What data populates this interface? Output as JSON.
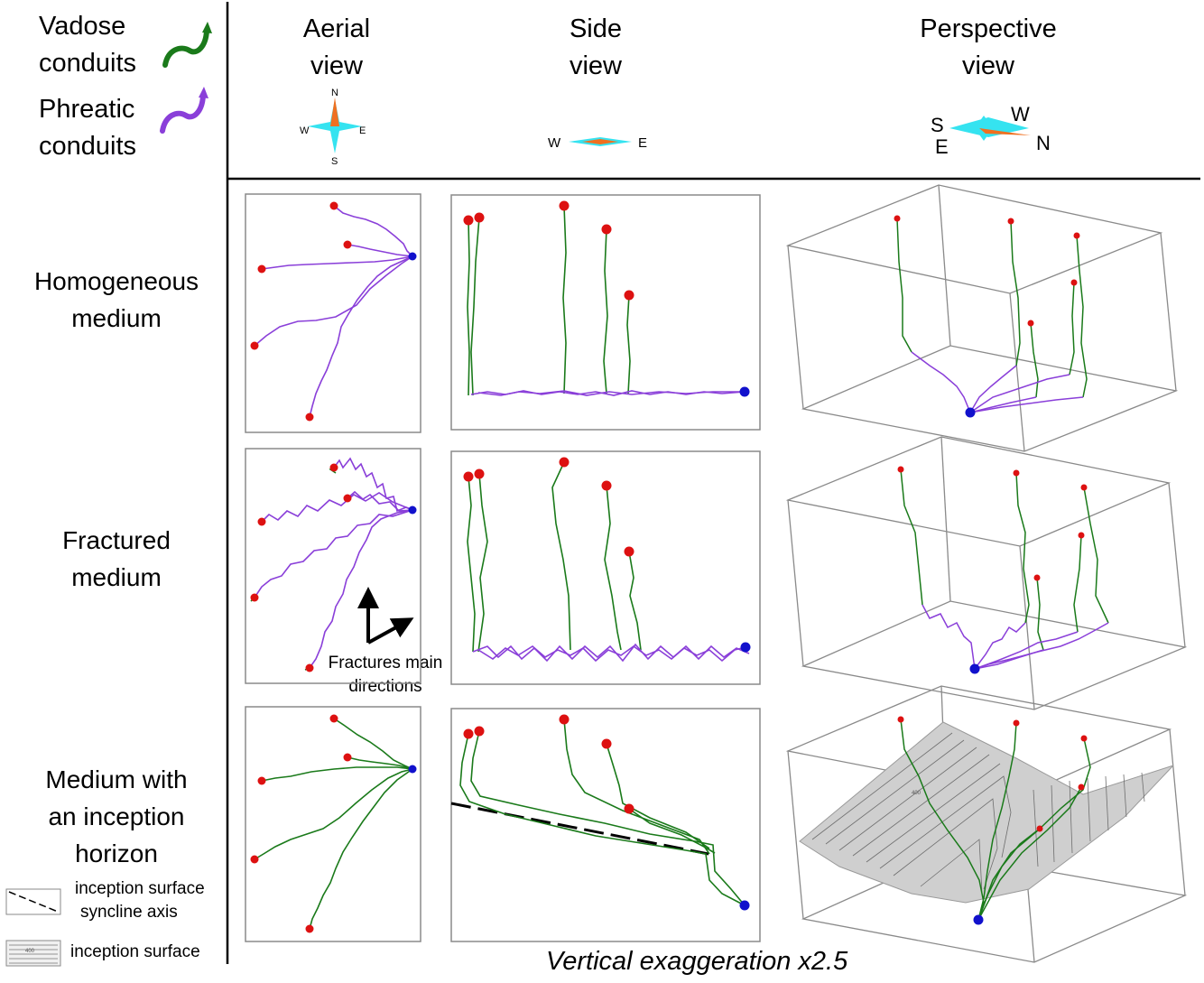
{
  "legend": {
    "vadose": {
      "line1": "Vadose",
      "line2": "conduits",
      "color": "#1a7a1a"
    },
    "phreatic": {
      "line1": "Phreatic",
      "line2": "conduits",
      "color": "#8a3fd9"
    }
  },
  "columns": {
    "aerial": {
      "line1": "Aerial",
      "line2": "view"
    },
    "side": {
      "line1": "Side",
      "line2": "view"
    },
    "perspective": {
      "line1": "Perspective",
      "line2": "view"
    }
  },
  "compass": {
    "aerial": {
      "n": "N",
      "s": "S",
      "w": "W",
      "e": "E"
    },
    "side": {
      "w": "W",
      "e": "E"
    },
    "perspective": {
      "s": "S",
      "e": "E",
      "w": "W",
      "n": "N"
    }
  },
  "rows": {
    "homogeneous": {
      "line1": "Homogeneous",
      "line2": "medium"
    },
    "fractured": {
      "line1": "Fractured",
      "line2": "medium"
    },
    "inception": {
      "line1": "Medium with",
      "line2": "an inception",
      "line3": "horizon"
    }
  },
  "fractures_note": {
    "line1": "Fractures main",
    "line2": "directions"
  },
  "bottom_legend": {
    "syncline": {
      "line1": "inception surface",
      "line2": "syncline axis"
    },
    "surface": {
      "label": "inception surface",
      "contour_value": "400"
    }
  },
  "caption": "Vertical exaggeration x2.5",
  "colors": {
    "inlet": "#dd1111",
    "outlet": "#1111cc",
    "frame": "#8a8a8a"
  }
}
